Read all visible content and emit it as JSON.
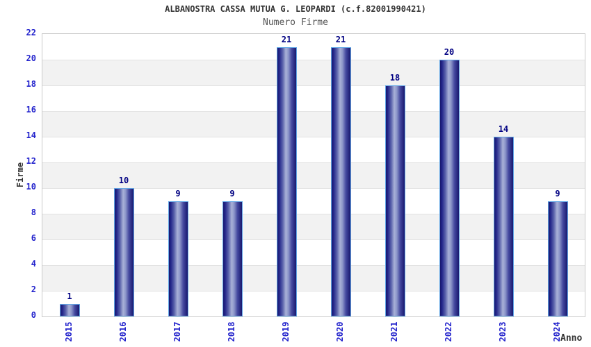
{
  "chart_data": {
    "type": "bar",
    "title": "ALBANOSTRA CASSA MUTUA G. LEOPARDI (c.f.82001990421)",
    "subtitle": "Numero Firme",
    "xlabel": "Anno",
    "ylabel": "Firme",
    "categories": [
      "2015",
      "2016",
      "2017",
      "2018",
      "2019",
      "2020",
      "2021",
      "2022",
      "2023",
      "2024"
    ],
    "values": [
      1,
      10,
      9,
      9,
      21,
      21,
      18,
      20,
      14,
      9
    ],
    "ylim": [
      0,
      22
    ],
    "ytick_step": 2,
    "yticks": [
      0,
      2,
      4,
      6,
      8,
      10,
      12,
      14,
      16,
      18,
      20,
      22
    ],
    "grid": "alternating horizontal bands every 2 units, white and light gray",
    "legend_position": "none",
    "colors": {
      "bar_edge": "#18186e",
      "bar_mid": "#a9b1d7",
      "bar_border": "#63a7e6",
      "axis_tick_label": "#2222cc",
      "value_label": "#000082",
      "band_gray": "#f2f2f2",
      "gridline": "#e2e2e2",
      "plot_border": "#c9c9c9",
      "title_color": "#333333",
      "subtitle_color": "#555555"
    }
  }
}
